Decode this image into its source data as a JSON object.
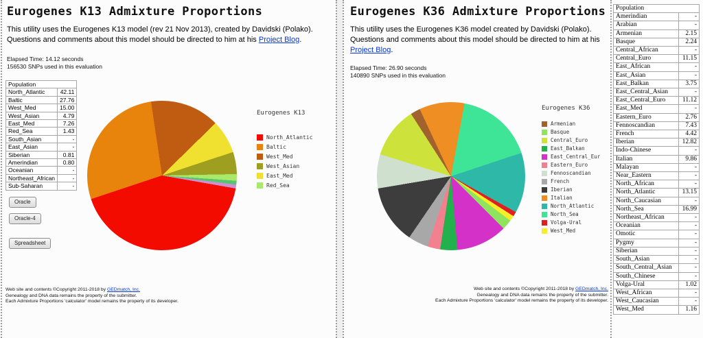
{
  "left_panel": {
    "title": "Eurogenes K13 Admixture Proportions",
    "description_prefix": "This utility uses the Eurogenes K13 model (rev 21 Nov 2013), created by Davidski (Polako). Questions and comments about this model should be directed to him at his ",
    "description_link": "Project Blog",
    "description_suffix": ".",
    "elapsed": "Elapsed Time: 14.12 seconds",
    "snps": "156530 SNPs used in this evaluation",
    "table": {
      "header": "Population",
      "rows": [
        [
          "North_Atlantic",
          "42.11"
        ],
        [
          "Baltic",
          "27.76"
        ],
        [
          "West_Med",
          "15.00"
        ],
        [
          "West_Asian",
          "4.79"
        ],
        [
          "East_Med",
          "7.26"
        ],
        [
          "Red_Sea",
          "1.43"
        ],
        [
          "South_Asian",
          "-"
        ],
        [
          "East_Asian",
          "-"
        ],
        [
          "Siberian",
          "0.81"
        ],
        [
          "Amerindian",
          "0.80"
        ],
        [
          "Oceanian",
          "-"
        ],
        [
          "Northeast_African",
          "-"
        ],
        [
          "Sub-Saharan",
          "-"
        ]
      ]
    },
    "buttons": [
      "Oracle",
      "Oracle-4",
      "Spreadsheet"
    ],
    "footer": {
      "copyright_prefix": "Web site and contents ©Copyright 2011-2018 by ",
      "copyright_link": "GEDmatch, Inc.",
      "line2": "Genealogy and DNA data remains the property of the submitter.",
      "line3": "Each Admixture Proportions 'calculator' model remains the property of its developer."
    }
  },
  "right_panel": {
    "title": "Eurogenes K36 Admixture Proportions",
    "description_prefix": "This utility uses the Eurogenes K36 model created by Davidski (Polako). Questions and comments about this model should be directed to him at his ",
    "description_link": "Project Blog",
    "description_suffix": ".",
    "elapsed": "Elapsed Time: 26.90 seconds",
    "snps": "140890 SNPs used in this evaluation",
    "table": {
      "header": "Population",
      "rows": [
        [
          "Amerindian",
          "-"
        ],
        [
          "Arabian",
          "-"
        ],
        [
          "Armenian",
          "2.15"
        ],
        [
          "Basque",
          "2.24"
        ],
        [
          "Central_African",
          "-"
        ],
        [
          "Central_Euro",
          "11.15"
        ],
        [
          "East_African",
          "-"
        ],
        [
          "East_Asian",
          "-"
        ],
        [
          "East_Balkan",
          "3.75"
        ],
        [
          "East_Central_Asian",
          "-"
        ],
        [
          "East_Central_Euro",
          "11.12"
        ],
        [
          "East_Med",
          "-"
        ],
        [
          "Eastern_Euro",
          "2.76"
        ],
        [
          "Fennoscandian",
          "7.43"
        ],
        [
          "French",
          "4.42"
        ],
        [
          "Iberian",
          "12.82"
        ],
        [
          "Indo-Chinese",
          "-"
        ],
        [
          "Italian",
          "9.86"
        ],
        [
          "Malayan",
          "-"
        ],
        [
          "Near_Eastern",
          "-"
        ],
        [
          "North_African",
          "-"
        ],
        [
          "North_Atlantic",
          "13.15"
        ],
        [
          "North_Caucasian",
          "-"
        ],
        [
          "North_Sea",
          "16.99"
        ],
        [
          "Northeast_African",
          "-"
        ],
        [
          "Oceanian",
          "-"
        ],
        [
          "Omotic",
          "-"
        ],
        [
          "Pygmy",
          "-"
        ],
        [
          "Siberian",
          "-"
        ],
        [
          "South_Asian",
          "-"
        ],
        [
          "South_Central_Asian",
          "-"
        ],
        [
          "South_Chinese",
          "-"
        ],
        [
          "Volga-Ural",
          "1.02"
        ],
        [
          "West_African",
          "-"
        ],
        [
          "West_Caucasian",
          "-"
        ],
        [
          "West_Med",
          "1.16"
        ]
      ]
    },
    "footer": {
      "copyright_prefix": "Web site and contents ©Copyright 2011-2018 by ",
      "copyright_link": "GEDmatch, Inc.",
      "line2": "Genealogy and DNA data remains the property of the submitter.",
      "line3": "Each Admixture Proportions 'calculator' model remains the property of its developer."
    }
  },
  "chart_data": [
    {
      "type": "pie",
      "title": "Eurogenes K13",
      "legend_position": "right",
      "start_angle": 100,
      "slices": [
        {
          "label": "North_Atlantic",
          "value": 42.11,
          "color": "#f30b00"
        },
        {
          "label": "Baltic",
          "value": 27.76,
          "color": "#e8830c"
        },
        {
          "label": "West_Med",
          "value": 15.0,
          "color": "#c05c12"
        },
        {
          "label": "West_Asian",
          "value": 4.79,
          "color": "#9e9e20"
        },
        {
          "label": "East_Med",
          "value": 7.26,
          "color": "#f0e130"
        },
        {
          "label": "Red_Sea",
          "value": 1.43,
          "color": "#a8e86a"
        },
        {
          "label": "Siberian",
          "value": 0.81,
          "color": "#58c470",
          "in_legend": false
        },
        {
          "label": "Amerindian",
          "value": 0.8,
          "color": "#cf8fcf",
          "in_legend": false
        }
      ],
      "pie_order": [
        "North_Atlantic",
        "Baltic",
        "West_Med",
        "East_Med",
        "West_Asian",
        "Red_Sea",
        "Siberian",
        "Amerindian"
      ]
    },
    {
      "type": "pie",
      "title": "Eurogenes K36",
      "legend_position": "right",
      "start_angle": 335,
      "slices": [
        {
          "label": "Armenian",
          "value": 2.15,
          "color": "#a2622e"
        },
        {
          "label": "Basque",
          "value": 2.24,
          "color": "#8fe35f"
        },
        {
          "label": "Central_Euro",
          "value": 11.15,
          "color": "#cde23a"
        },
        {
          "label": "East_Balkan",
          "value": 3.75,
          "color": "#23b14d"
        },
        {
          "label": "East_Central_Eur",
          "value": 11.12,
          "color": "#d431c9"
        },
        {
          "label": "Eastern_Euro",
          "value": 2.76,
          "color": "#f2808f"
        },
        {
          "label": "Fennoscandian",
          "value": 7.43,
          "color": "#cfe0cf"
        },
        {
          "label": "French",
          "value": 4.42,
          "color": "#a8a8a8"
        },
        {
          "label": "Iberian",
          "value": 12.82,
          "color": "#3d3d3d"
        },
        {
          "label": "Italian",
          "value": 9.86,
          "color": "#ef8e22"
        },
        {
          "label": "North_Atlantic",
          "value": 13.15,
          "color": "#2db8a8"
        },
        {
          "label": "North_Sea",
          "value": 16.99,
          "color": "#3ee596"
        },
        {
          "label": "Volga-Ural",
          "value": 1.02,
          "color": "#e02020"
        },
        {
          "label": "West_Med",
          "value": 1.16,
          "color": "#f5ef2a"
        }
      ],
      "pie_order": [
        "Italian",
        "North_Sea",
        "North_Atlantic",
        "Volga-Ural",
        "West_Med",
        "Basque",
        "East_Central_Eur",
        "East_Balkan",
        "Eastern_Euro",
        "French",
        "Iberian",
        "Fennoscandian",
        "Central_Euro",
        "Armenian"
      ]
    }
  ]
}
